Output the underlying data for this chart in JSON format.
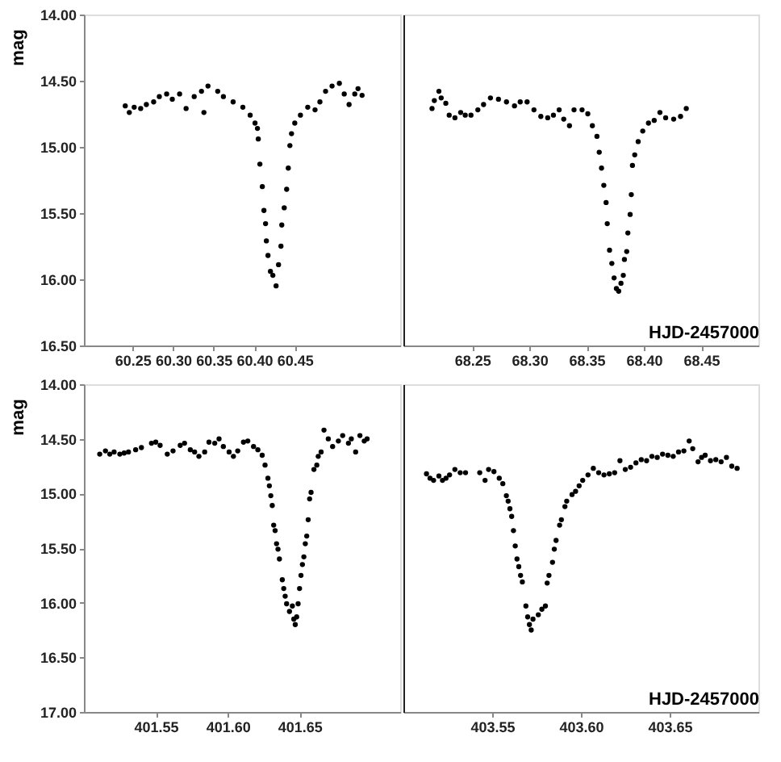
{
  "chart_data": [
    {
      "type": "scatter",
      "ylabel": "mag",
      "marker": "circle",
      "xlim": [
        60.19,
        60.58
      ],
      "xticks": [
        60.25,
        {
          "value": 60.3,
          "label": "60.30"
        },
        60.35,
        {
          "value": 60.4,
          "label": "60.40"
        },
        60.45
      ],
      "ylim": [
        16.5,
        14
      ],
      "yticks": [
        {
          "value": 14,
          "label": "14.00"
        },
        {
          "value": 14.5,
          "label": "14.50"
        },
        {
          "value": 15,
          "label": "15.00"
        },
        {
          "value": 15.5,
          "label": "15.50"
        },
        {
          "value": 16,
          "label": "16.00"
        },
        {
          "value": 16.5,
          "label": "16.50"
        }
      ],
      "grid": false,
      "series": [
        {
          "color": "#000000",
          "x": [
            60.241,
            60.246,
            60.252,
            60.26,
            60.267,
            60.276,
            60.283,
            60.292,
            60.299,
            60.308,
            60.316,
            60.326,
            60.335,
            60.338,
            60.343,
            60.355,
            60.362,
            60.374,
            60.386,
            60.395,
            60.401,
            60.404,
            60.405,
            60.407,
            60.41,
            60.412,
            60.414,
            60.415,
            60.417,
            60.42,
            60.423,
            60.427,
            60.43,
            60.433,
            60.434,
            60.437,
            60.44,
            60.442,
            60.444,
            60.446,
            60.45,
            60.457,
            60.466,
            60.475,
            60.481,
            60.488,
            60.496,
            60.505,
            60.511,
            60.517,
            60.524,
            60.528,
            60.533
          ],
          "values": [
            14.69,
            14.74,
            14.7,
            14.71,
            14.68,
            14.66,
            14.62,
            14.6,
            14.64,
            14.6,
            14.71,
            14.62,
            14.58,
            14.74,
            14.54,
            14.58,
            14.62,
            14.66,
            14.7,
            14.76,
            14.82,
            14.86,
            14.94,
            15.13,
            15.3,
            15.48,
            15.58,
            15.71,
            15.82,
            15.94,
            15.97,
            16.05,
            15.89,
            15.75,
            15.59,
            15.46,
            15.32,
            15.16,
            14.99,
            14.9,
            14.82,
            14.76,
            14.7,
            14.72,
            14.66,
            14.58,
            14.54,
            14.52,
            14.6,
            14.68,
            14.6,
            14.56,
            14.61
          ]
        }
      ]
    },
    {
      "type": "scatter",
      "xlabel": "HJD-2457000",
      "marker": "circle",
      "tick_labels": "x",
      "xlim": [
        68.19,
        68.5
      ],
      "xticks": [
        68.25,
        {
          "value": 68.3,
          "label": "68.30"
        },
        68.35,
        {
          "value": 68.4,
          "label": "68.40"
        },
        68.45
      ],
      "ylim": [
        16.5,
        14
      ],
      "grid": false,
      "series": [
        {
          "color": "#000000",
          "x": [
            68.215,
            68.217,
            68.221,
            68.223,
            68.227,
            68.23,
            68.235,
            68.24,
            68.244,
            68.249,
            68.255,
            68.26,
            68.266,
            68.273,
            68.28,
            68.287,
            68.292,
            68.298,
            68.304,
            68.31,
            68.316,
            68.321,
            68.326,
            68.33,
            68.335,
            68.339,
            68.346,
            68.351,
            68.355,
            68.359,
            68.361,
            68.363,
            68.365,
            68.367,
            68.368,
            68.37,
            68.372,
            68.374,
            68.376,
            68.378,
            68.38,
            68.382,
            68.383,
            68.385,
            68.386,
            68.388,
            68.389,
            68.39,
            68.392,
            68.395,
            68.399,
            68.404,
            68.409,
            68.414,
            68.419,
            68.426,
            68.432,
            68.437
          ],
          "values": [
            14.71,
            14.65,
            14.58,
            14.63,
            14.67,
            14.76,
            14.78,
            14.74,
            14.76,
            14.76,
            14.72,
            14.68,
            14.63,
            14.64,
            14.66,
            14.69,
            14.66,
            14.66,
            14.72,
            14.77,
            14.78,
            14.76,
            14.72,
            14.79,
            14.84,
            14.72,
            14.72,
            14.75,
            14.84,
            14.92,
            15.04,
            15.16,
            15.29,
            15.42,
            15.58,
            15.78,
            15.88,
            15.99,
            16.07,
            16.09,
            16.03,
            15.97,
            15.85,
            15.79,
            15.65,
            15.51,
            15.36,
            15.14,
            15.06,
            14.96,
            14.88,
            14.82,
            14.8,
            14.74,
            14.78,
            14.79,
            14.77,
            14.71
          ]
        }
      ]
    },
    {
      "type": "scatter",
      "ylabel": "mag",
      "marker": "circle",
      "xlim": [
        401.5,
        401.72
      ],
      "xticks": [
        401.55,
        {
          "value": 401.6,
          "label": "401.60"
        },
        401.65
      ],
      "ylim": [
        17,
        14
      ],
      "yticks": [
        {
          "value": 14,
          "label": "14.00"
        },
        {
          "value": 14.5,
          "label": "14.50"
        },
        {
          "value": 15,
          "label": "15.00"
        },
        {
          "value": 15.5,
          "label": "15.50"
        },
        {
          "value": 16,
          "label": "16.00"
        },
        {
          "value": 16.5,
          "label": "16.50"
        },
        {
          "value": 17,
          "label": "17.00"
        }
      ],
      "grid": false,
      "series": [
        {
          "color": "#000000",
          "x": [
            401.511,
            401.515,
            401.518,
            401.521,
            401.525,
            401.528,
            401.531,
            401.536,
            401.54,
            401.547,
            401.55,
            401.553,
            401.558,
            401.562,
            401.567,
            401.57,
            401.574,
            401.577,
            401.58,
            401.584,
            401.587,
            401.591,
            401.594,
            401.597,
            401.601,
            401.604,
            401.607,
            401.611,
            401.614,
            401.618,
            401.621,
            401.624,
            401.626,
            401.628,
            401.629,
            401.63,
            401.631,
            401.632,
            401.633,
            401.634,
            401.635,
            401.636,
            401.638,
            401.639,
            401.64,
            401.641,
            401.643,
            401.645,
            401.646,
            401.647,
            401.648,
            401.649,
            401.65,
            401.651,
            401.652,
            401.653,
            401.654,
            401.655,
            401.656,
            401.657,
            401.658,
            401.66,
            401.662,
            401.663,
            401.665,
            401.667,
            401.67,
            401.673,
            401.677,
            401.68,
            401.684,
            401.686,
            401.689,
            401.692,
            401.695,
            401.697
          ],
          "values": [
            14.64,
            14.61,
            14.64,
            14.62,
            14.64,
            14.63,
            14.62,
            14.6,
            14.58,
            14.54,
            14.53,
            14.56,
            14.64,
            14.61,
            14.56,
            14.54,
            14.6,
            14.62,
            14.66,
            14.62,
            14.53,
            14.54,
            14.5,
            14.57,
            14.62,
            14.66,
            14.61,
            14.53,
            14.52,
            14.57,
            14.6,
            14.65,
            14.74,
            14.86,
            14.93,
            15.02,
            15.11,
            15.29,
            15.34,
            15.46,
            15.51,
            15.6,
            15.79,
            15.87,
            15.94,
            16.01,
            16.08,
            16.03,
            16.15,
            16.2,
            16.13,
            16.01,
            15.87,
            15.75,
            15.65,
            15.58,
            15.46,
            15.39,
            15.24,
            15.05,
            14.99,
            14.78,
            14.74,
            14.66,
            14.62,
            14.42,
            14.5,
            14.57,
            14.52,
            14.47,
            14.54,
            14.5,
            14.62,
            14.47,
            14.52,
            14.5
          ]
        }
      ]
    },
    {
      "type": "scatter",
      "xlabel": "HJD-2457000",
      "marker": "circle",
      "tick_labels": "x",
      "xlim": [
        403.5,
        403.7
      ],
      "xticks": [
        403.55,
        {
          "value": 403.6,
          "label": "403.60"
        },
        403.65
      ],
      "ylim": [
        17,
        14
      ],
      "grid": false,
      "series": [
        {
          "color": "#000000",
          "x": [
            403.513,
            403.515,
            403.517,
            403.52,
            403.522,
            403.524,
            403.526,
            403.529,
            403.532,
            403.535,
            403.543,
            403.546,
            403.548,
            403.551,
            403.554,
            403.556,
            403.558,
            403.559,
            403.56,
            403.561,
            403.562,
            403.563,
            403.564,
            403.565,
            403.566,
            403.567,
            403.569,
            403.57,
            403.571,
            403.572,
            403.573,
            403.576,
            403.578,
            403.58,
            403.581,
            403.582,
            403.584,
            403.585,
            403.586,
            403.588,
            403.589,
            403.591,
            403.592,
            403.595,
            403.597,
            403.599,
            403.601,
            403.604,
            403.607,
            403.61,
            403.613,
            403.616,
            403.619,
            403.622,
            403.625,
            403.628,
            403.631,
            403.634,
            403.637,
            403.64,
            403.643,
            403.646,
            403.649,
            403.652,
            403.655,
            403.658,
            403.661,
            403.663,
            403.666,
            403.668,
            403.67,
            403.673,
            403.676,
            403.679,
            403.682,
            403.685,
            403.688
          ],
          "values": [
            14.82,
            14.86,
            14.88,
            14.84,
            14.88,
            14.86,
            14.83,
            14.78,
            14.81,
            14.81,
            14.81,
            14.88,
            14.78,
            14.8,
            14.86,
            14.91,
            15.02,
            15.07,
            15.14,
            15.21,
            15.34,
            15.48,
            15.6,
            15.67,
            15.75,
            15.81,
            16.03,
            16.13,
            16.2,
            16.25,
            16.15,
            16.11,
            16.06,
            16.03,
            15.82,
            15.75,
            15.63,
            15.51,
            15.43,
            15.29,
            15.24,
            15.12,
            15.07,
            15.01,
            14.98,
            14.93,
            14.88,
            14.83,
            14.77,
            14.81,
            14.83,
            14.82,
            14.81,
            14.7,
            14.78,
            14.76,
            14.72,
            14.69,
            14.7,
            14.66,
            14.67,
            14.64,
            14.65,
            14.66,
            14.62,
            14.61,
            14.52,
            14.59,
            14.71,
            14.67,
            14.65,
            14.7,
            14.69,
            14.71,
            14.67,
            14.75,
            14.77
          ]
        }
      ]
    }
  ]
}
